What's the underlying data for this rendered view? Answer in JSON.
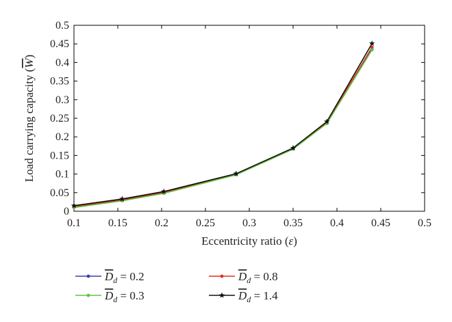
{
  "chart_data": {
    "type": "line",
    "xlabel_prefix": "Eccentricity ratio (",
    "xlabel_var": "ε",
    "xlabel_suffix": ")",
    "ylabel_prefix": "Load carrying capacity (",
    "ylabel_var": "W",
    "ylabel_suffix": ")",
    "xlim": [
      0.1,
      0.5
    ],
    "ylim": [
      0,
      0.5
    ],
    "xticks": [
      0.1,
      0.15,
      0.2,
      0.25,
      0.3,
      0.35,
      0.4,
      0.45,
      0.5
    ],
    "yticks": [
      0,
      0.05,
      0.1,
      0.15,
      0.2,
      0.25,
      0.3,
      0.35,
      0.4,
      0.45,
      0.5
    ],
    "xtick_labels": [
      "0.1",
      "0.15",
      "0.2",
      "0.25",
      "0.3",
      "0.35",
      "0.4",
      "0.45",
      "0.5"
    ],
    "ytick_labels": [
      "0",
      "0.05",
      "0.1",
      "0.15",
      "0.2",
      "0.25",
      "0.3",
      "0.35",
      "0.4",
      "0.45",
      "0.5"
    ],
    "grid": false,
    "legend_position": "below",
    "x": [
      0.1,
      0.155,
      0.2025,
      0.285,
      0.35,
      0.3885,
      0.44
    ],
    "series": [
      {
        "name_var": "D",
        "name_sub": "d",
        "name_value": " = 0.2",
        "color": "#3b3bb0",
        "marker": "dot",
        "values": [
          0.011,
          0.029,
          0.049,
          0.099,
          0.168,
          0.237,
          0.436
        ]
      },
      {
        "name_var": "D",
        "name_sub": "d",
        "name_value": " = 0.8",
        "color": "#e03020",
        "marker": "dot",
        "values": [
          0.013,
          0.031,
          0.051,
          0.1,
          0.169,
          0.239,
          0.441
        ]
      },
      {
        "name_var": "D",
        "name_sub": "d",
        "name_value": " = 0.3",
        "color": "#66c040",
        "marker": "dot",
        "values": [
          0.01,
          0.028,
          0.048,
          0.098,
          0.167,
          0.236,
          0.434
        ]
      },
      {
        "name_var": "D",
        "name_sub": "d",
        "name_value": " = 1.4",
        "color": "#111111",
        "marker": "star",
        "values": [
          0.015,
          0.033,
          0.053,
          0.101,
          0.17,
          0.241,
          0.451
        ]
      }
    ]
  }
}
